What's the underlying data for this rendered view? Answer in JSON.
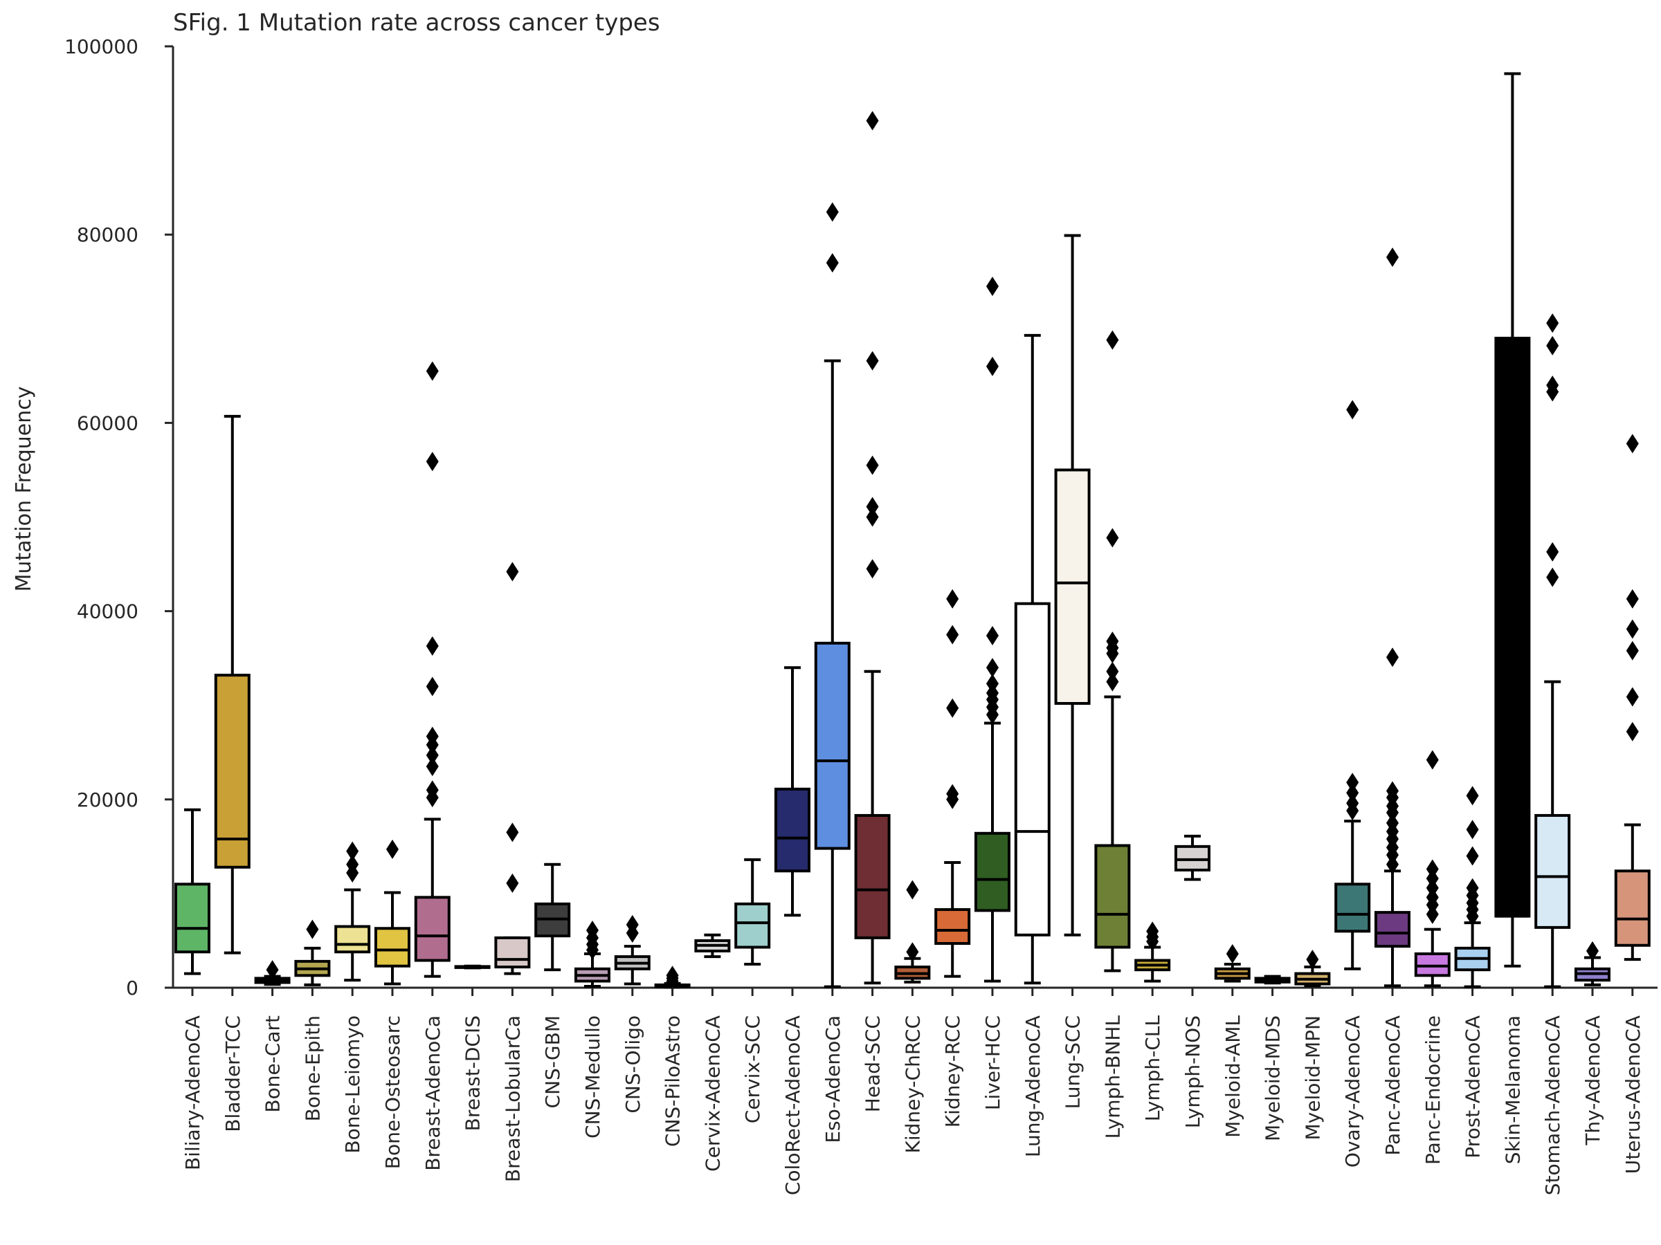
{
  "chart_data": {
    "type": "box",
    "title": "SFig. 1 Mutation rate across cancer types",
    "xlabel": "",
    "ylabel": "Mutation Frequency",
    "ylim": [
      0,
      100000
    ],
    "yticks": [
      0,
      20000,
      40000,
      60000,
      80000,
      100000
    ],
    "grid": false,
    "legend": "none",
    "axis_color": "#262626",
    "series": [
      {
        "name": "Biliary-AdenoCA",
        "color": "#5fb566",
        "whisker_low": 1500,
        "q1": 3800,
        "median": 6300,
        "q3": 11000,
        "whisker_high": 18900,
        "outliers": []
      },
      {
        "name": "Bladder-TCC",
        "color": "#c9a035",
        "whisker_low": 3700,
        "q1": 12800,
        "median": 15800,
        "q3": 33200,
        "whisker_high": 60700,
        "outliers": []
      },
      {
        "name": "Bone-Cart",
        "color": "#f2ecc3",
        "whisker_low": 350,
        "q1": 550,
        "median": 750,
        "q3": 1000,
        "whisker_high": 1200,
        "outliers": [
          1900
        ]
      },
      {
        "name": "Bone-Epith",
        "color": "#b2a64f",
        "whisker_low": 300,
        "q1": 1300,
        "median": 2000,
        "q3": 2800,
        "whisker_high": 4200,
        "outliers": [
          6200
        ]
      },
      {
        "name": "Bone-Leiomyo",
        "color": "#ede293",
        "whisker_low": 800,
        "q1": 3800,
        "median": 4600,
        "q3": 6500,
        "whisker_high": 10400,
        "outliers": [
          12200,
          13100,
          14500
        ]
      },
      {
        "name": "Bone-Osteosarc",
        "color": "#e0c442",
        "whisker_low": 400,
        "q1": 2300,
        "median": 4000,
        "q3": 6300,
        "whisker_high": 10100,
        "outliers": [
          14700
        ]
      },
      {
        "name": "Breast-AdenoCa",
        "color": "#b06d8e",
        "whisker_low": 1200,
        "q1": 2900,
        "median": 5500,
        "q3": 9600,
        "whisker_high": 17900,
        "outliers": [
          20200,
          21000,
          23500,
          24700,
          25800,
          26700,
          32000,
          36300,
          55900,
          65500
        ]
      },
      {
        "name": "Breast-DCIS",
        "color": "#dcbccc",
        "whisker_low": 2100,
        "q1": 2150,
        "median": 2200,
        "q3": 2250,
        "whisker_high": 2300,
        "outliers": []
      },
      {
        "name": "Breast-LobularCa",
        "color": "#d8c8c8",
        "whisker_low": 1500,
        "q1": 2200,
        "median": 3000,
        "q3": 5300,
        "whisker_high": 5300,
        "outliers": [
          11100,
          16500,
          44200
        ]
      },
      {
        "name": "CNS-GBM",
        "color": "#3d3d3d",
        "whisker_low": 1900,
        "q1": 5500,
        "median": 7300,
        "q3": 8900,
        "whisker_high": 13100,
        "outliers": []
      },
      {
        "name": "CNS-Medullo",
        "color": "#b69cb2",
        "whisker_low": 150,
        "q1": 700,
        "median": 1300,
        "q3": 2000,
        "whisker_high": 3600,
        "outliers": [
          4000,
          4600,
          5300,
          6100
        ]
      },
      {
        "name": "CNS-Oligo",
        "color": "#c2c2c2",
        "whisker_low": 400,
        "q1": 2000,
        "median": 2600,
        "q3": 3300,
        "whisker_high": 4400,
        "outliers": [
          5800,
          6700
        ]
      },
      {
        "name": "CNS-PiloAstro",
        "color": "#c9c9c9",
        "whisker_low": 50,
        "q1": 100,
        "median": 200,
        "q3": 300,
        "whisker_high": 450,
        "outliers": [
          700,
          1000,
          1300
        ]
      },
      {
        "name": "Cervix-AdenoCA",
        "color": "#d8d8d8",
        "whisker_low": 3300,
        "q1": 3900,
        "median": 4500,
        "q3": 5000,
        "whisker_high": 5600,
        "outliers": []
      },
      {
        "name": "Cervix-SCC",
        "color": "#9ecfcc",
        "whisker_low": 2500,
        "q1": 4300,
        "median": 6900,
        "q3": 8900,
        "whisker_high": 13600,
        "outliers": []
      },
      {
        "name": "ColoRect-AdenoCA",
        "color": "#262b6e",
        "whisker_low": 7700,
        "q1": 12400,
        "median": 15900,
        "q3": 21100,
        "whisker_high": 34000,
        "outliers": []
      },
      {
        "name": "Eso-AdenoCa",
        "color": "#5e8ee0",
        "whisker_low": 100,
        "q1": 14800,
        "median": 24100,
        "q3": 36600,
        "whisker_high": 66600,
        "outliers": [
          77000,
          82400
        ]
      },
      {
        "name": "Head-SCC",
        "color": "#6e2e33",
        "whisker_low": 500,
        "q1": 5300,
        "median": 10400,
        "q3": 18300,
        "whisker_high": 33600,
        "outliers": [
          44500,
          50000,
          51100,
          55500,
          66600,
          92100
        ]
      },
      {
        "name": "Kidney-ChRCC",
        "color": "#b25e3a",
        "whisker_low": 600,
        "q1": 1000,
        "median": 1500,
        "q3": 2200,
        "whisker_high": 3100,
        "outliers": [
          3800,
          10400
        ]
      },
      {
        "name": "Kidney-RCC",
        "color": "#d86a37",
        "whisker_low": 1200,
        "q1": 4700,
        "median": 6100,
        "q3": 8300,
        "whisker_high": 13300,
        "outliers": [
          20000,
          20600,
          29700,
          37500,
          41300
        ]
      },
      {
        "name": "Liver-HCC",
        "color": "#2f5d22",
        "whisker_low": 700,
        "q1": 8200,
        "median": 11500,
        "q3": 16400,
        "whisker_high": 28100,
        "outliers": [
          29000,
          29800,
          30600,
          31300,
          32300,
          34000,
          37400,
          66000,
          74500
        ]
      },
      {
        "name": "Lung-AdenoCA",
        "color": "#ffffff",
        "whisker_low": 500,
        "q1": 5600,
        "median": 16600,
        "q3": 40800,
        "whisker_high": 69300,
        "outliers": []
      },
      {
        "name": "Lung-SCC",
        "color": "#f7f3ea",
        "whisker_low": 5600,
        "q1": 30200,
        "median": 43000,
        "q3": 55000,
        "whisker_high": 79900,
        "outliers": []
      },
      {
        "name": "Lymph-BNHL",
        "color": "#6e8036",
        "whisker_low": 1800,
        "q1": 4300,
        "median": 7800,
        "q3": 15100,
        "whisker_high": 30900,
        "outliers": [
          32500,
          33600,
          35500,
          36100,
          36800,
          47800,
          68800
        ]
      },
      {
        "name": "Lymph-CLL",
        "color": "#c6aa3a",
        "whisker_low": 700,
        "q1": 1900,
        "median": 2400,
        "q3": 2900,
        "whisker_high": 4300,
        "outliers": [
          4900,
          5400,
          6000
        ]
      },
      {
        "name": "Lymph-NOS",
        "color": "#d8d3d3",
        "whisker_low": 11500,
        "q1": 12500,
        "median": 13600,
        "q3": 15000,
        "whisker_high": 16100,
        "outliers": []
      },
      {
        "name": "Myeloid-AML",
        "color": "#c79b44",
        "whisker_low": 700,
        "q1": 1000,
        "median": 1500,
        "q3": 2000,
        "whisker_high": 2500,
        "outliers": [
          3600
        ]
      },
      {
        "name": "Myeloid-MDS",
        "color": "#a59d8f",
        "whisker_low": 500,
        "q1": 600,
        "median": 800,
        "q3": 1000,
        "whisker_high": 1200,
        "outliers": []
      },
      {
        "name": "Myeloid-MPN",
        "color": "#d0b06a",
        "whisker_low": 200,
        "q1": 400,
        "median": 900,
        "q3": 1500,
        "whisker_high": 2200,
        "outliers": [
          3000
        ]
      },
      {
        "name": "Ovary-AdenoCA",
        "color": "#3d7775",
        "whisker_low": 2000,
        "q1": 6000,
        "median": 7800,
        "q3": 11000,
        "whisker_high": 17700,
        "outliers": [
          18800,
          19600,
          20700,
          21800,
          61400
        ]
      },
      {
        "name": "Panc-AdenoCA",
        "color": "#6c3a80",
        "whisker_low": 200,
        "q1": 4400,
        "median": 5800,
        "q3": 8000,
        "whisker_high": 12400,
        "outliers": [
          13100,
          14100,
          14900,
          15800,
          16600,
          17500,
          18600,
          19300,
          20200,
          20900,
          35100,
          77600
        ]
      },
      {
        "name": "Panc-Endocrine",
        "color": "#c779e0",
        "whisker_low": 200,
        "q1": 1300,
        "median": 2300,
        "q3": 3600,
        "whisker_high": 6200,
        "outliers": [
          7800,
          8800,
          9600,
          10600,
          11600,
          12600,
          24200
        ]
      },
      {
        "name": "Prost-AdenoCA",
        "color": "#a9d0ef",
        "whisker_low": 100,
        "q1": 1900,
        "median": 3100,
        "q3": 4200,
        "whisker_high": 6900,
        "outliers": [
          7600,
          8300,
          9000,
          9800,
          10600,
          14000,
          16800,
          20400
        ]
      },
      {
        "name": "Skin-Melanoma",
        "color": "#000000",
        "whisker_low": 2300,
        "q1": 7600,
        "median": 7600,
        "q3": 69000,
        "whisker_high": 97100,
        "outliers": []
      },
      {
        "name": "Stomach-AdenoCA",
        "color": "#d6e9f5",
        "whisker_low": 100,
        "q1": 6400,
        "median": 11800,
        "q3": 18300,
        "whisker_high": 32500,
        "outliers": [
          43600,
          46300,
          63300,
          64000,
          68200,
          70600
        ]
      },
      {
        "name": "Thy-AdenoCA",
        "color": "#8e80cc",
        "whisker_low": 300,
        "q1": 800,
        "median": 1500,
        "q3": 2000,
        "whisker_high": 3200,
        "outliers": [
          3900
        ]
      },
      {
        "name": "Uterus-AdenoCA",
        "color": "#d6957b",
        "whisker_low": 3000,
        "q1": 4500,
        "median": 7300,
        "q3": 12400,
        "whisker_high": 17300,
        "outliers": [
          27200,
          30900,
          35800,
          38100,
          41300,
          57800
        ]
      }
    ]
  }
}
